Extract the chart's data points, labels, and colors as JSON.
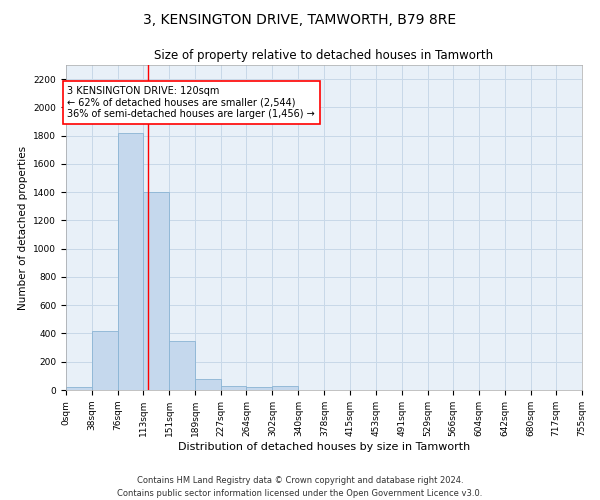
{
  "title": "3, KENSINGTON DRIVE, TAMWORTH, B79 8RE",
  "subtitle": "Size of property relative to detached houses in Tamworth",
  "xlabel": "Distribution of detached houses by size in Tamworth",
  "ylabel": "Number of detached properties",
  "bar_color": "#c5d8ed",
  "bar_edge_color": "#8ab4d4",
  "grid_color": "#c8d8e8",
  "background_color": "#e8f0f8",
  "property_line_x": 120,
  "property_line_color": "red",
  "annotation_text": "3 KENSINGTON DRIVE: 120sqm\n← 62% of detached houses are smaller (2,544)\n36% of semi-detached houses are larger (1,456) →",
  "annotation_box_color": "white",
  "annotation_box_edge_color": "red",
  "bins": [
    0,
    38,
    76,
    113,
    151,
    189,
    227,
    264,
    302,
    340,
    378,
    415,
    453,
    491,
    529,
    566,
    604,
    642,
    680,
    717,
    755
  ],
  "bar_heights": [
    20,
    420,
    1820,
    1400,
    350,
    75,
    30,
    20,
    30,
    0,
    0,
    0,
    0,
    0,
    0,
    0,
    0,
    0,
    0,
    0
  ],
  "yticks": [
    0,
    200,
    400,
    600,
    800,
    1000,
    1200,
    1400,
    1600,
    1800,
    2000,
    2200
  ],
  "ylim": [
    0,
    2300
  ],
  "footer_text": "Contains HM Land Registry data © Crown copyright and database right 2024.\nContains public sector information licensed under the Open Government Licence v3.0.",
  "tick_label_fontsize": 6.5,
  "title_fontsize": 10,
  "subtitle_fontsize": 8.5,
  "xlabel_fontsize": 8,
  "ylabel_fontsize": 7.5,
  "annotation_fontsize": 7,
  "footer_fontsize": 6
}
